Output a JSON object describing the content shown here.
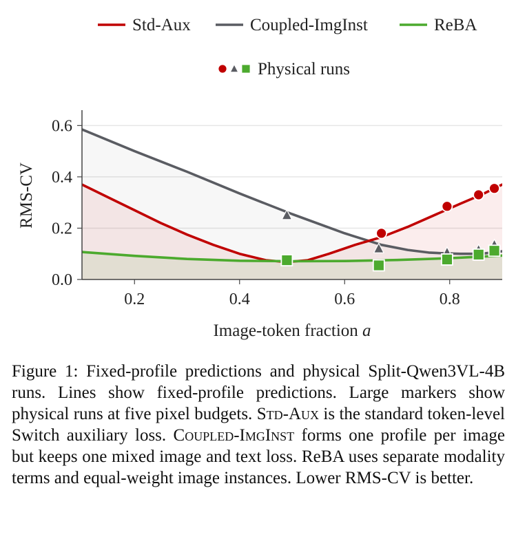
{
  "figure": {
    "chart_data": {
      "type": "line",
      "xlabel": "Image-token fraction a",
      "ylabel": "RMS-CV",
      "xlim": [
        0.1,
        0.9
      ],
      "ylim": [
        0.0,
        0.66
      ],
      "xticks": [
        "0.2",
        "0.4",
        "0.6",
        "0.8"
      ],
      "yticks": [
        "0.0",
        "0.2",
        "0.4",
        "0.6"
      ],
      "grid": "horizontal",
      "legend_position": "top",
      "legend": [
        {
          "label": "Std-Aux",
          "color": "#c00000"
        },
        {
          "label": "Coupled-ImgInst",
          "color": "#5a5c62"
        },
        {
          "label": "ReBA",
          "color": "#4caa2e"
        },
        {
          "label": "Physical runs"
        }
      ],
      "series": [
        {
          "name": "Std-Aux",
          "color": "#c00000",
          "x": [
            0.1,
            0.15,
            0.2,
            0.25,
            0.3,
            0.35,
            0.4,
            0.45,
            0.49,
            0.53,
            0.57,
            0.62,
            0.67,
            0.72,
            0.77,
            0.82,
            0.86,
            0.9
          ],
          "y": [
            0.37,
            0.32,
            0.27,
            0.22,
            0.175,
            0.135,
            0.1,
            0.075,
            0.068,
            0.075,
            0.1,
            0.135,
            0.165,
            0.205,
            0.25,
            0.295,
            0.33,
            0.37
          ]
        },
        {
          "name": "Coupled-ImgInst",
          "color": "#5a5c62",
          "x": [
            0.1,
            0.2,
            0.3,
            0.4,
            0.5,
            0.6,
            0.67,
            0.72,
            0.76,
            0.79,
            0.82,
            0.86,
            0.9
          ],
          "y": [
            0.585,
            0.5,
            0.42,
            0.335,
            0.255,
            0.18,
            0.135,
            0.115,
            0.105,
            0.102,
            0.1,
            0.1,
            0.11
          ]
        },
        {
          "name": "ReBA",
          "color": "#4caa2e",
          "x": [
            0.1,
            0.2,
            0.3,
            0.4,
            0.5,
            0.6,
            0.7,
            0.8,
            0.9
          ],
          "y": [
            0.107,
            0.092,
            0.08,
            0.073,
            0.071,
            0.072,
            0.076,
            0.083,
            0.093
          ]
        }
      ],
      "physical_runs": [
        {
          "name": "Std-Aux",
          "marker": "circle",
          "x": [
            0.67,
            0.795,
            0.855,
            0.885
          ],
          "y": [
            0.18,
            0.285,
            0.33,
            0.355
          ]
        },
        {
          "name": "Coupled-ImgInst",
          "marker": "triangle",
          "x": [
            0.49,
            0.665,
            0.795,
            0.855,
            0.885
          ],
          "y": [
            0.25,
            0.12,
            0.105,
            0.115,
            0.135
          ]
        },
        {
          "name": "ReBA",
          "marker": "square",
          "x": [
            0.49,
            0.665,
            0.795,
            0.855,
            0.885
          ],
          "y": [
            0.075,
            0.055,
            0.078,
            0.097,
            0.112
          ]
        }
      ]
    }
  },
  "caption": {
    "label": "Figure 1:",
    "part1": "Fixed-profile predictions and physical Split-Qwen3VL-4B runs. Lines show fixed-profile predictions. Large markers show physical runs at five pixel budgets.",
    "term_std": "Std-Aux",
    "part2": "is the standard token-level Switch auxiliary loss.",
    "term_coupled": "Coupled-ImgInst",
    "part3": "forms one profile per image but keeps one mixed image and text loss. ReBA uses separate modality terms and equal-weight image instances. Lower RMS-CV is better."
  }
}
